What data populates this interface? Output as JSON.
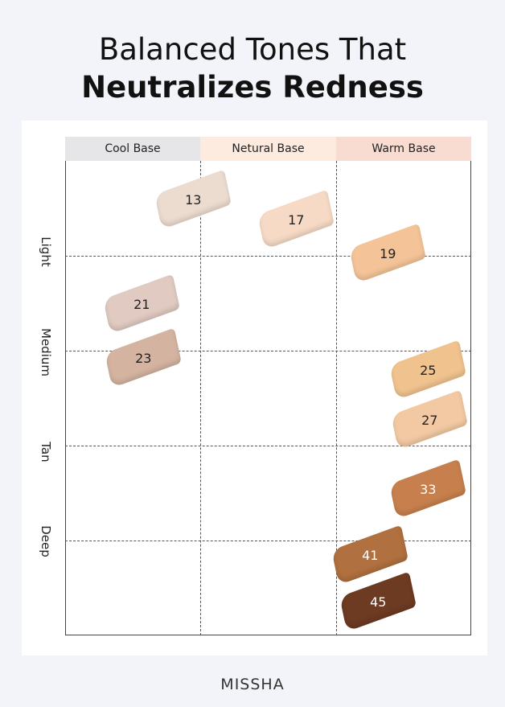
{
  "title_line1": "Balanced Tones That",
  "title_line2": "Neutralizes Redness",
  "columns": [
    {
      "label": "Cool Base",
      "color": "#e6e5e8"
    },
    {
      "label": "Netural Base",
      "color": "#fdebe0"
    },
    {
      "label": "Warm Base",
      "color": "#f8dcd2"
    }
  ],
  "rows": [
    "Light",
    "Medium",
    "Tan",
    "Deep"
  ],
  "shades": [
    {
      "label": "13",
      "color": "#ecdcd0",
      "text": "#222"
    },
    {
      "label": "17",
      "color": "#f6dac6",
      "text": "#222"
    },
    {
      "label": "19",
      "color": "#f4c498",
      "text": "#222"
    },
    {
      "label": "21",
      "color": "#e0cac1",
      "text": "#222"
    },
    {
      "label": "23",
      "color": "#d4b3a0",
      "text": "#222"
    },
    {
      "label": "25",
      "color": "#f0c28e",
      "text": "#222"
    },
    {
      "label": "27",
      "color": "#f2c9a3",
      "text": "#222"
    },
    {
      "label": "33",
      "color": "#c7804d",
      "text": "#fff"
    },
    {
      "label": "41",
      "color": "#b0703f",
      "text": "#fff"
    },
    {
      "label": "45",
      "color": "#6d3a22",
      "text": "#fff"
    }
  ],
  "brand": "MISSHA"
}
